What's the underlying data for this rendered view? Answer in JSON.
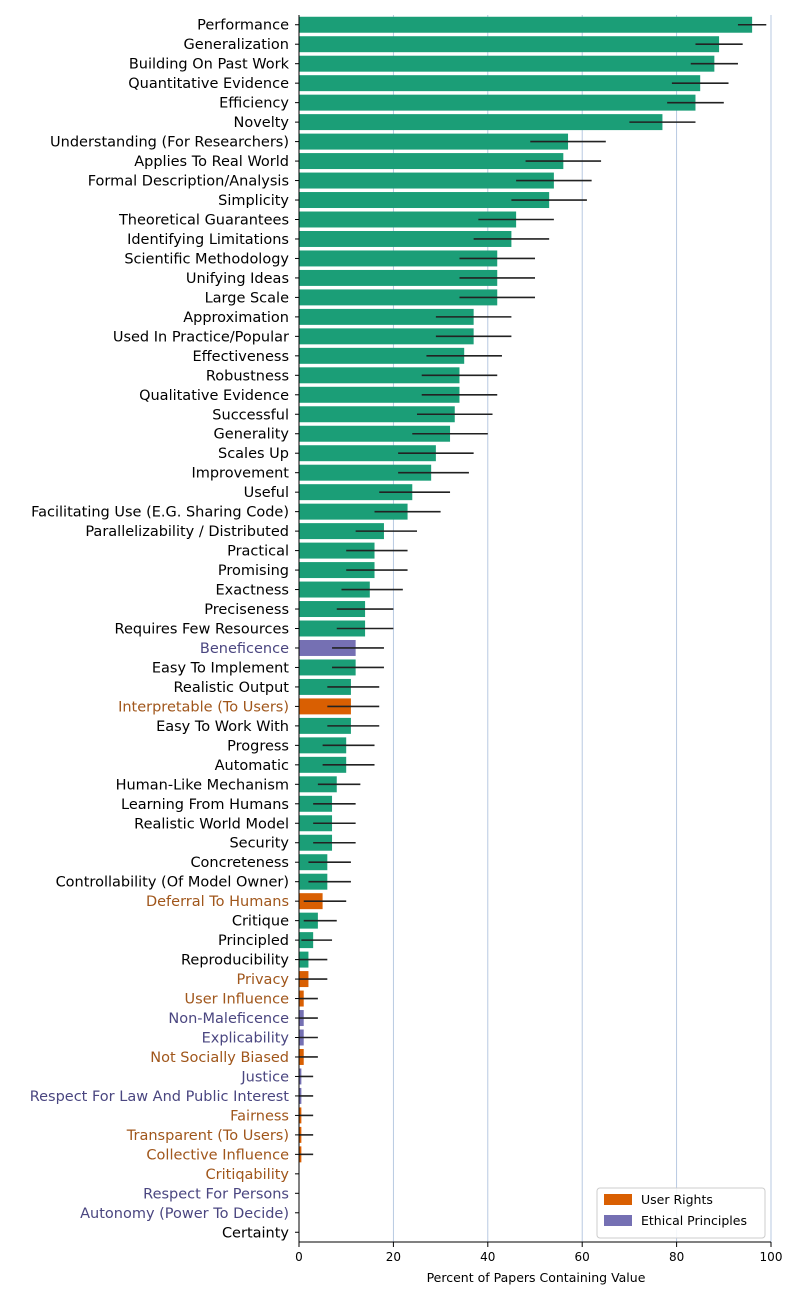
{
  "chart_data": {
    "type": "bar",
    "orientation": "horizontal",
    "title": "",
    "xlabel": "Percent of Papers Containing Value",
    "ylabel": "",
    "xlim": [
      0,
      100
    ],
    "xticks": [
      0,
      20,
      40,
      60,
      80,
      100
    ],
    "grid": "vertical",
    "legend_position": "bottom-right",
    "legend": [
      {
        "name": "User Rights",
        "color": "#d95f02"
      },
      {
        "name": "Ethical Principles",
        "color": "#7570b3"
      }
    ],
    "colors": {
      "default_bar": "#1b9e77",
      "user_rights_bar": "#d95f02",
      "ethical_bar": "#7570b3",
      "user_rights_label": "#a0561b",
      "ethical_label": "#4a4680",
      "default_label": "#000000",
      "error_bar": "#222222",
      "grid": "#b0c4de"
    },
    "categories": [
      "Performance",
      "Generalization",
      "Building On Past Work",
      "Quantitative Evidence",
      "Efficiency",
      "Novelty",
      "Understanding (For Researchers)",
      "Applies To Real World",
      "Formal Description/Analysis",
      "Simplicity",
      "Theoretical Guarantees",
      "Identifying Limitations",
      "Scientific Methodology",
      "Unifying Ideas",
      "Large Scale",
      "Approximation",
      "Used In Practice/Popular",
      "Effectiveness",
      "Robustness",
      "Qualitative Evidence",
      "Successful",
      "Generality",
      "Scales Up",
      "Improvement",
      "Useful",
      "Facilitating Use (E.G. Sharing Code)",
      "Parallelizability / Distributed",
      "Practical",
      "Promising",
      "Exactness",
      "Preciseness",
      "Requires Few Resources",
      "Beneficence",
      "Easy To Implement",
      "Realistic Output",
      "Interpretable (To Users)",
      "Easy To Work With",
      "Progress",
      "Automatic",
      "Human-Like Mechanism",
      "Learning From Humans",
      "Realistic World Model",
      "Security",
      "Concreteness",
      "Controllability (Of Model Owner)",
      "Deferral To Humans",
      "Critique",
      "Principled",
      "Reproducibility",
      "Privacy",
      "User Influence",
      "Non-Maleficence",
      "Explicability",
      "Not Socially Biased",
      "Justice",
      "Respect For Law And Public Interest",
      "Fairness",
      "Transparent (To Users)",
      "Collective Influence",
      "Critiqability",
      "Respect For Persons",
      "Autonomy (Power To Decide)",
      "Certainty"
    ],
    "values": [
      96,
      89,
      88,
      85,
      84,
      77,
      57,
      56,
      54,
      53,
      46,
      45,
      42,
      42,
      42,
      37,
      37,
      35,
      34,
      34,
      33,
      32,
      29,
      28,
      24,
      23,
      18,
      16,
      16,
      15,
      14,
      14,
      12,
      12,
      11,
      11,
      11,
      10,
      10,
      8,
      7,
      7,
      7,
      6,
      6,
      5,
      4,
      3,
      2,
      2,
      1,
      1,
      1,
      1,
      0.5,
      0.5,
      0.5,
      0.5,
      0.5,
      0,
      0,
      0,
      0
    ],
    "error_low": [
      93,
      84,
      83,
      79,
      78,
      70,
      49,
      48,
      46,
      45,
      38,
      37,
      34,
      34,
      34,
      29,
      29,
      27,
      26,
      26,
      25,
      24,
      21,
      21,
      17,
      16,
      12,
      10,
      10,
      9,
      8,
      8,
      7,
      7,
      6,
      6,
      6,
      5,
      5,
      4,
      3,
      3,
      3,
      2,
      2,
      1,
      1,
      0.5,
      0,
      0,
      0,
      0,
      0,
      0,
      0,
      0,
      0,
      0,
      0,
      0,
      0,
      0,
      0
    ],
    "error_high": [
      99,
      94,
      93,
      91,
      90,
      84,
      65,
      64,
      62,
      61,
      54,
      53,
      50,
      50,
      50,
      45,
      45,
      43,
      42,
      42,
      41,
      40,
      37,
      36,
      32,
      30,
      25,
      23,
      23,
      22,
      20,
      20,
      18,
      18,
      17,
      17,
      17,
      16,
      16,
      13,
      12,
      12,
      12,
      11,
      11,
      10,
      8,
      7,
      6,
      6,
      4,
      4,
      4,
      4,
      3,
      3,
      3,
      3,
      3,
      0,
      0,
      0,
      0
    ],
    "groups": [
      "",
      "",
      "",
      "",
      "",
      "",
      "",
      "",
      "",
      "",
      "",
      "",
      "",
      "",
      "",
      "",
      "",
      "",
      "",
      "",
      "",
      "",
      "",
      "",
      "",
      "",
      "",
      "",
      "",
      "",
      "",
      "",
      "ethical",
      "",
      "",
      "user",
      "",
      "",
      "",
      "",
      "",
      "",
      "",
      "",
      "",
      "user",
      "",
      "",
      "",
      "user",
      "user",
      "ethical",
      "ethical",
      "user",
      "ethical",
      "ethical",
      "user",
      "user",
      "user",
      "user",
      "ethical",
      "ethical",
      ""
    ]
  }
}
